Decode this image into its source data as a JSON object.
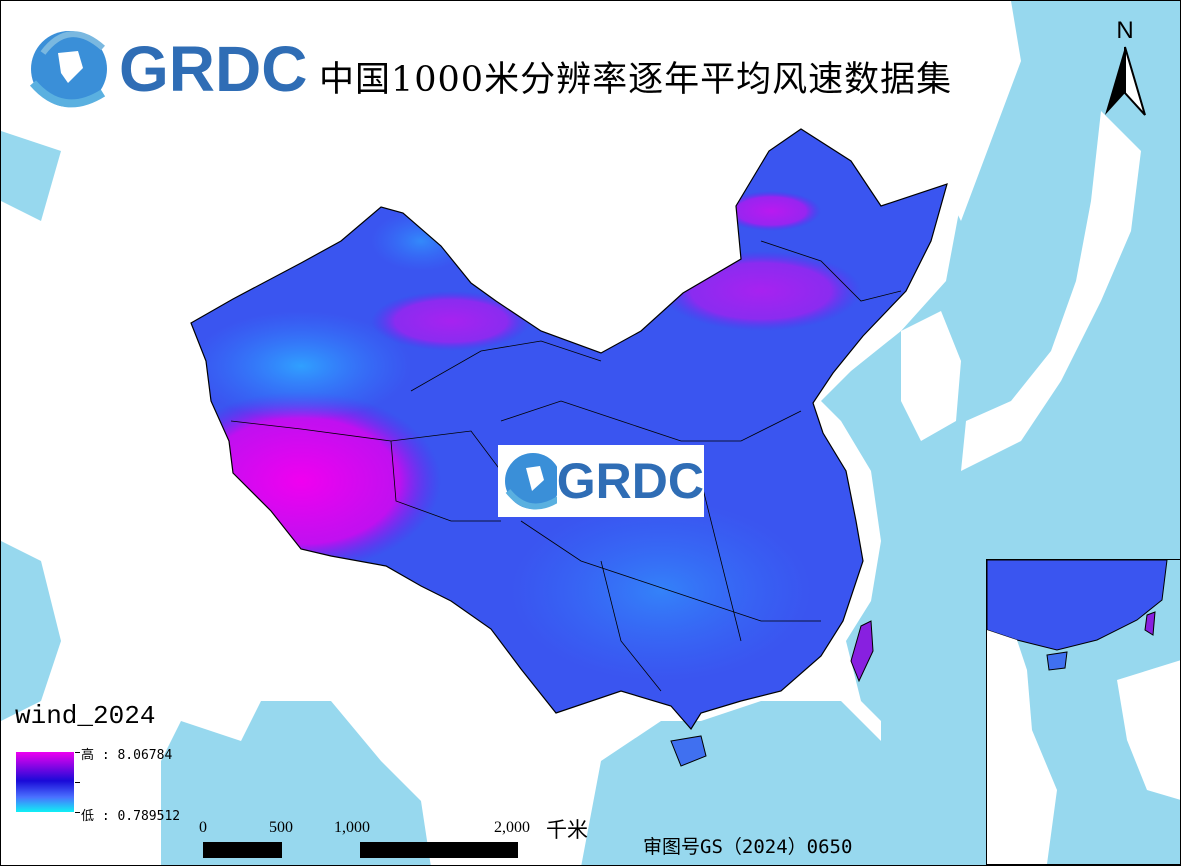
{
  "title": "中国1000米分辨率逐年平均风速数据集",
  "logo": {
    "text": "GRDC"
  },
  "watermark": {
    "text": "GRDC"
  },
  "legend": {
    "title": "wind_2024",
    "high_label": "高 : 8.06784",
    "low_label": "低 : 0.789512",
    "high_value": 8.06784,
    "low_value": 0.789512,
    "colors": [
      "#ee00f0",
      "#1a0ad8",
      "#10f0f5"
    ]
  },
  "scale_bar": {
    "labels": [
      "0",
      "500",
      "1,000",
      "2,000"
    ],
    "unit": "千米"
  },
  "approval_number": "审图号GS（2024）0650",
  "north_arrow": {
    "label": "N"
  },
  "colors": {
    "ocean": "#97d8ee",
    "land": "#ffffff",
    "boundary": "#000000"
  }
}
